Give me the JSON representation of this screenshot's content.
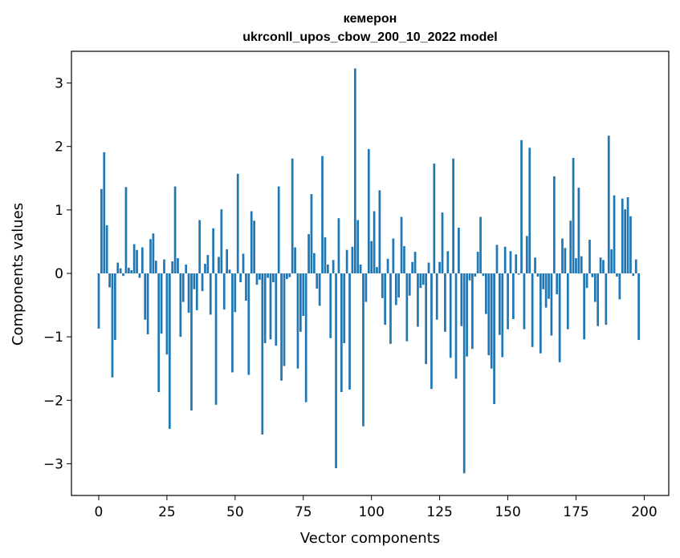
{
  "chart_data": {
    "type": "bar",
    "title_lines": [
      "кемерон",
      "ukrconll_upos_cbow_200_10_2022 model"
    ],
    "xlabel": "Vector components",
    "ylabel": "Components values",
    "xlim": [
      -10,
      209
    ],
    "ylim": [
      -3.5,
      3.5
    ],
    "xticks": [
      0,
      25,
      50,
      75,
      100,
      125,
      150,
      175,
      200
    ],
    "yticks": [
      -3,
      -2,
      -1,
      0,
      1,
      2,
      3
    ],
    "ytick_labels": [
      "−3",
      "−2",
      "−1",
      "0",
      "1",
      "2",
      "3"
    ],
    "grid": false,
    "bar_color": "#1f77b4",
    "values": [
      -0.87,
      1.33,
      1.91,
      0.76,
      -0.22,
      -1.64,
      -1.05,
      0.17,
      0.08,
      -0.04,
      1.36,
      0.09,
      0.05,
      0.46,
      0.37,
      -0.07,
      0.41,
      -0.73,
      -0.96,
      0.54,
      0.63,
      0.2,
      -1.87,
      -0.95,
      0.22,
      -1.28,
      -2.45,
      0.19,
      1.37,
      0.24,
      -1.0,
      -0.45,
      0.14,
      -0.62,
      -2.16,
      -0.25,
      -0.58,
      0.84,
      -0.28,
      0.15,
      0.29,
      -0.65,
      0.71,
      -2.07,
      0.26,
      1.01,
      -0.57,
      0.38,
      0.06,
      -1.56,
      -0.61,
      1.57,
      -0.14,
      0.31,
      -0.43,
      -1.6,
      0.98,
      0.83,
      -0.18,
      -0.1,
      -2.54,
      -1.1,
      -0.07,
      -1.04,
      -0.14,
      -1.14,
      1.37,
      -1.69,
      -1.46,
      -0.09,
      -0.06,
      1.81,
      0.41,
      -1.5,
      -0.92,
      -0.67,
      -2.03,
      0.62,
      1.25,
      0.32,
      -0.24,
      -0.51,
      1.85,
      0.57,
      0.14,
      -1.02,
      0.21,
      -3.07,
      0.87,
      -1.87,
      -1.1,
      0.37,
      -1.83,
      0.42,
      3.23,
      0.84,
      0.14,
      -2.41,
      -0.45,
      1.96,
      0.51,
      0.98,
      0.1,
      1.31,
      -0.39,
      -0.81,
      0.23,
      -1.11,
      0.55,
      -0.5,
      -0.38,
      0.89,
      0.43,
      -1.07,
      -0.35,
      0.18,
      0.34,
      -0.84,
      -0.23,
      -0.18,
      -1.43,
      0.17,
      -1.82,
      1.73,
      -0.73,
      0.18,
      0.96,
      -0.92,
      0.35,
      -1.33,
      1.81,
      -1.66,
      0.72,
      -0.83,
      -3.15,
      -1.31,
      -0.11,
      -1.19,
      -0.05,
      0.34,
      0.89,
      -0.04,
      -0.64,
      -1.29,
      -1.5,
      -2.06,
      0.45,
      -0.97,
      -1.32,
      0.42,
      -0.88,
      0.35,
      -0.72,
      0.3,
      -0.02,
      2.1,
      -0.88,
      0.59,
      1.98,
      -1.16,
      0.25,
      -0.05,
      -1.26,
      -0.25,
      -0.54,
      -0.4,
      -0.98,
      1.53,
      -0.33,
      -1.4,
      0.55,
      0.4,
      -0.88,
      0.83,
      1.82,
      0.24,
      1.35,
      0.27,
      -1.04,
      -0.23,
      0.53,
      -0.06,
      -0.45,
      -0.83,
      0.25,
      0.21,
      -0.81,
      2.17,
      0.38,
      1.23,
      -0.05,
      -0.41,
      1.18,
      1.01,
      1.2,
      0.9,
      -0.04,
      0.22,
      -1.05
    ]
  }
}
